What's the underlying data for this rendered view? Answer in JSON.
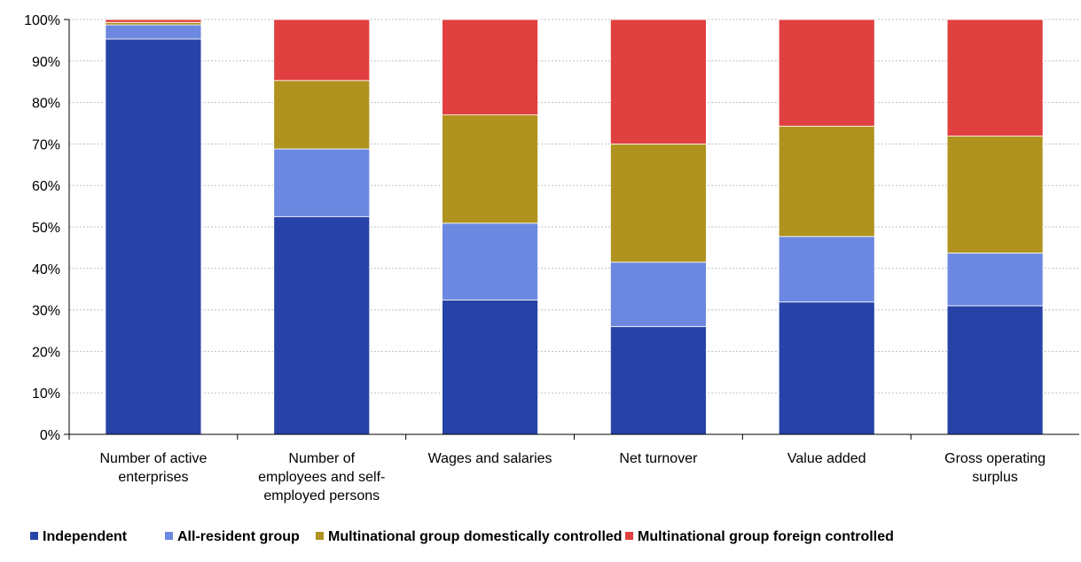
{
  "chart_data": {
    "type": "bar",
    "stacked": true,
    "normalized": true,
    "categories": [
      [
        "Number of active",
        "enterprises"
      ],
      [
        "Number of",
        "employees and self-",
        "employed persons"
      ],
      [
        "Wages and salaries"
      ],
      [
        "Net turnover"
      ],
      [
        "Value added"
      ],
      [
        "Gross operating",
        "surplus"
      ]
    ],
    "series": [
      {
        "name": "Independent",
        "color": "#2843a7",
        "values": [
          95.3,
          52.5,
          32.4,
          26.0,
          31.9,
          31.0
        ]
      },
      {
        "name": "All-resident group",
        "color": "#6c88e0",
        "values": [
          3.4,
          16.3,
          18.5,
          15.5,
          15.8,
          12.7
        ]
      },
      {
        "name": "Multinational group domestically controlled",
        "color": "#b0921f",
        "values": [
          0.6,
          16.5,
          26.1,
          28.5,
          26.6,
          28.2
        ]
      },
      {
        "name": "Multinational group foreign controlled",
        "color": "#e04040",
        "values": [
          0.7,
          14.7,
          23.0,
          30.0,
          25.7,
          28.1
        ]
      }
    ],
    "y_ticks": [
      "0%",
      "10%",
      "20%",
      "30%",
      "40%",
      "50%",
      "60%",
      "70%",
      "80%",
      "90%",
      "100%"
    ],
    "ylim": [
      0,
      100
    ],
    "grid": true,
    "legend_position": "bottom"
  }
}
